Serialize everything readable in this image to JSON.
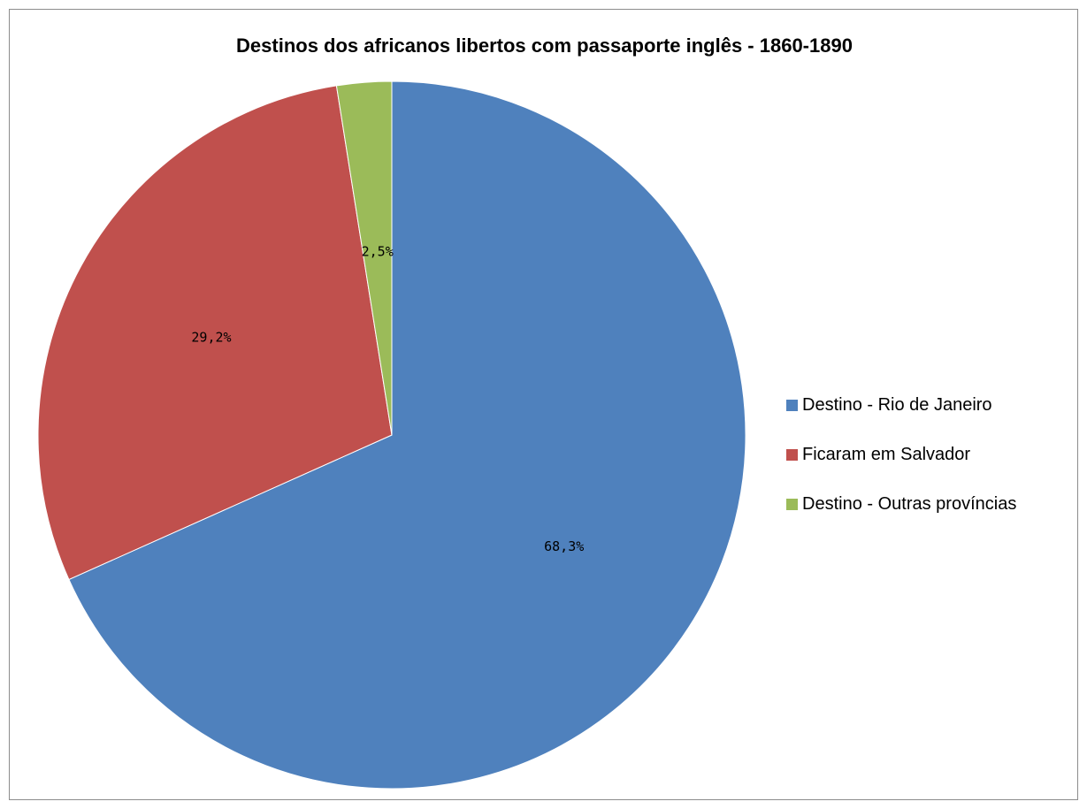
{
  "chart_data": {
    "type": "pie",
    "title": "Destinos dos africanos libertos com passaporte inglês - 1860-1890",
    "slices": [
      {
        "label": "Destino - Rio de Janeiro",
        "value": 68.3,
        "display": "68,3%",
        "color": "#4F81BD"
      },
      {
        "label": "Ficaram em Salvador",
        "value": 29.2,
        "display": "29,2%",
        "color": "#C0504D"
      },
      {
        "label": "Destino - Outras províncias",
        "value": 2.5,
        "display": "2,5%",
        "color": "#9BBB59"
      }
    ],
    "legend_position": "right",
    "start_angle": "12 o'clock, clockwise"
  }
}
